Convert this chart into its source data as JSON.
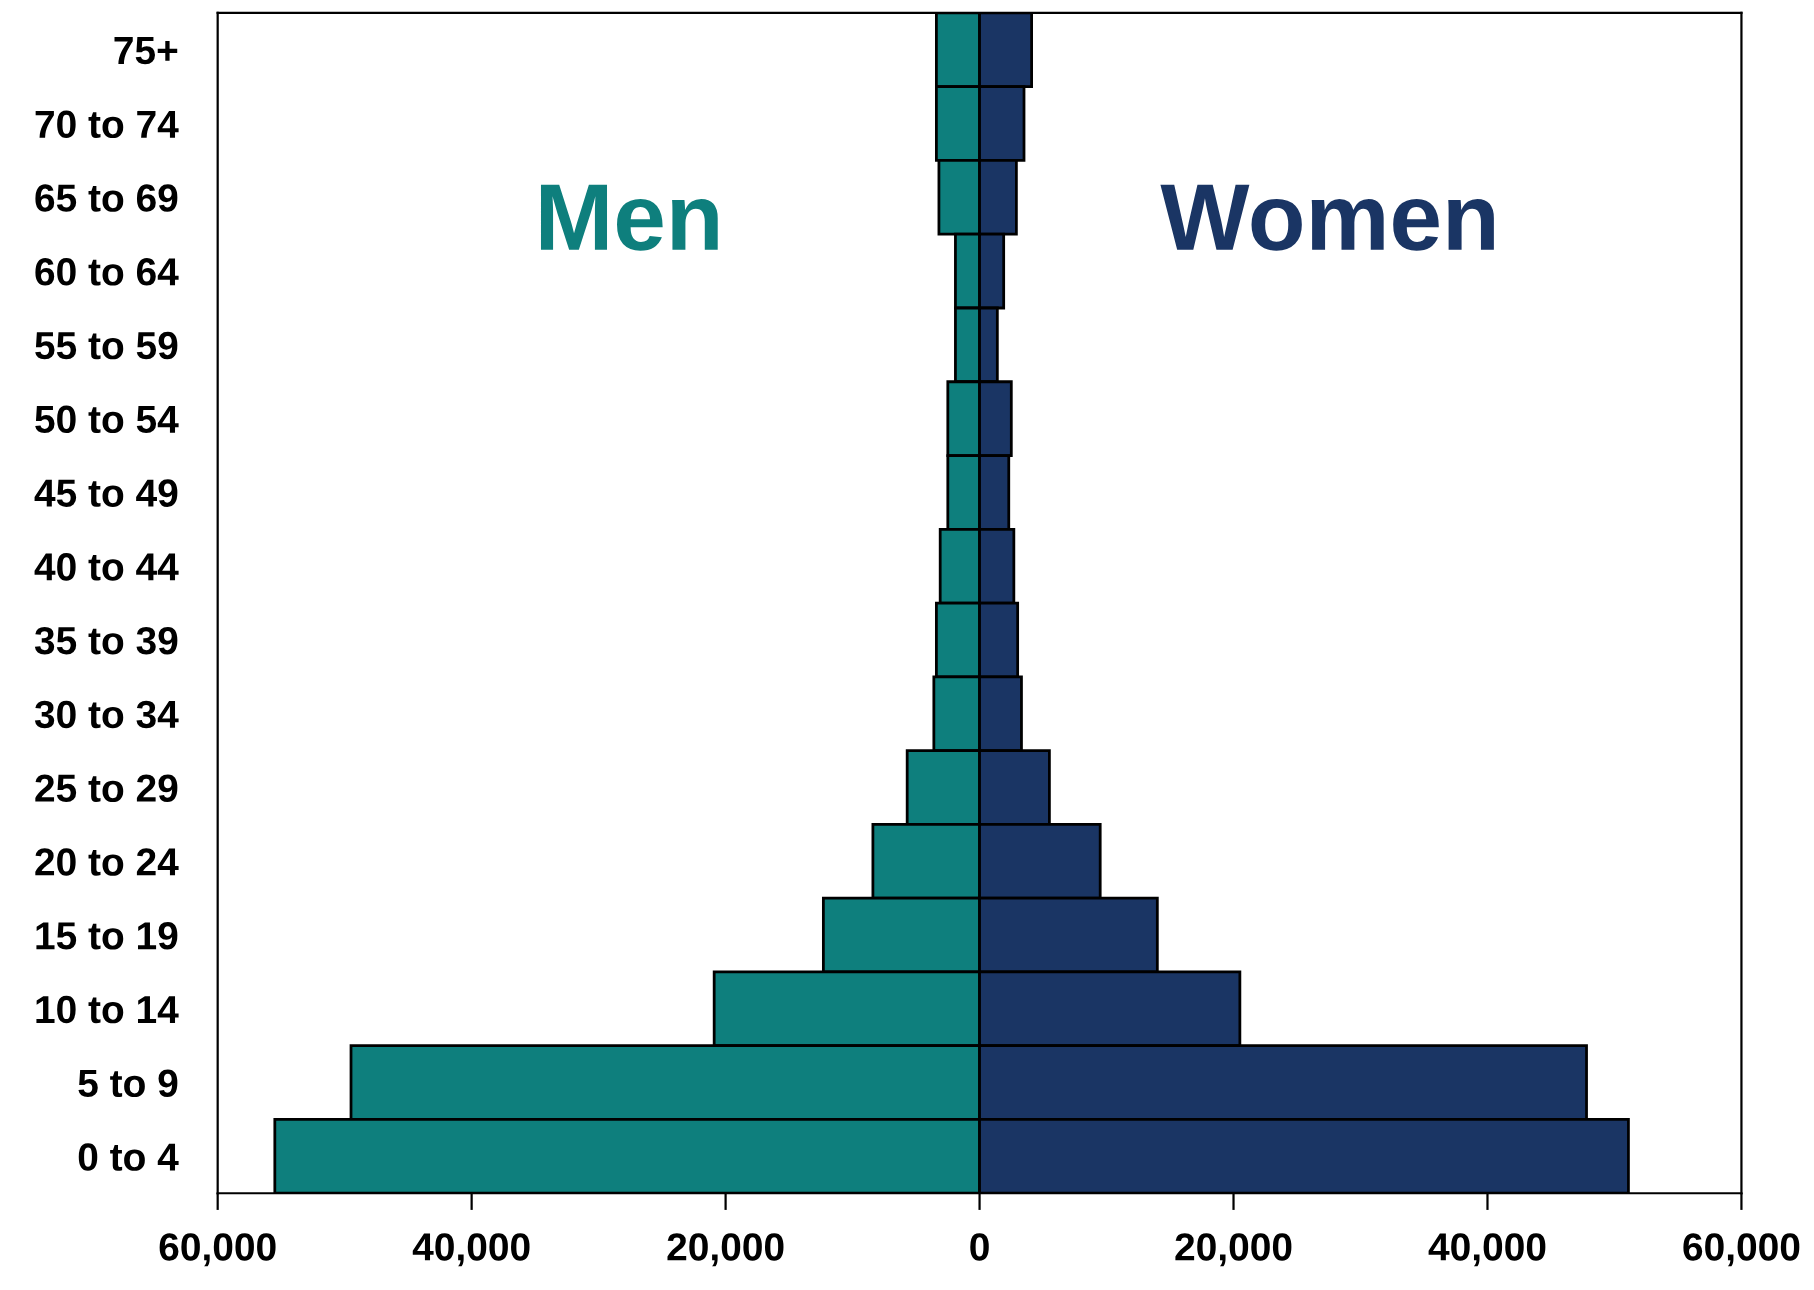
{
  "chart_data": {
    "type": "bar",
    "orientation": "horizontal",
    "stacked": true,
    "categories": [
      "75+",
      "70 to 74",
      "65 to 69",
      "60 to 64",
      "55 to 59",
      "50 to 54",
      "45 to 49",
      "40 to 44",
      "35 to 39",
      "30 to 34",
      "25 to 29",
      "20 to 24",
      "15 to 19",
      "10 to 14",
      "5 to 9",
      "0 to 4"
    ],
    "series": [
      {
        "name": "Men",
        "color": "#0e7f7d",
        "values": [
          -3400,
          -3400,
          -3200,
          -1900,
          -1900,
          -2500,
          -2500,
          -3100,
          -3400,
          -3600,
          -5700,
          -8400,
          -12300,
          -20900,
          -49500,
          -55500
        ]
      },
      {
        "name": "Women",
        "color": "#1a3564",
        "values": [
          4100,
          3500,
          2900,
          1900,
          1400,
          2500,
          2300,
          2700,
          3000,
          3300,
          5500,
          9500,
          14000,
          20500,
          47800,
          51100
        ]
      }
    ],
    "xlim": [
      -60000,
      60000
    ],
    "xticks": [
      {
        "value": -60000,
        "label": "60,000"
      },
      {
        "value": -40000,
        "label": "40,000"
      },
      {
        "value": -20000,
        "label": "20,000"
      },
      0,
      {
        "value": 20000,
        "label": "20,000"
      },
      {
        "value": 40000,
        "label": "40,000"
      },
      {
        "value": 60000,
        "label": "60,000"
      }
    ],
    "grid": false,
    "legend": false
  }
}
